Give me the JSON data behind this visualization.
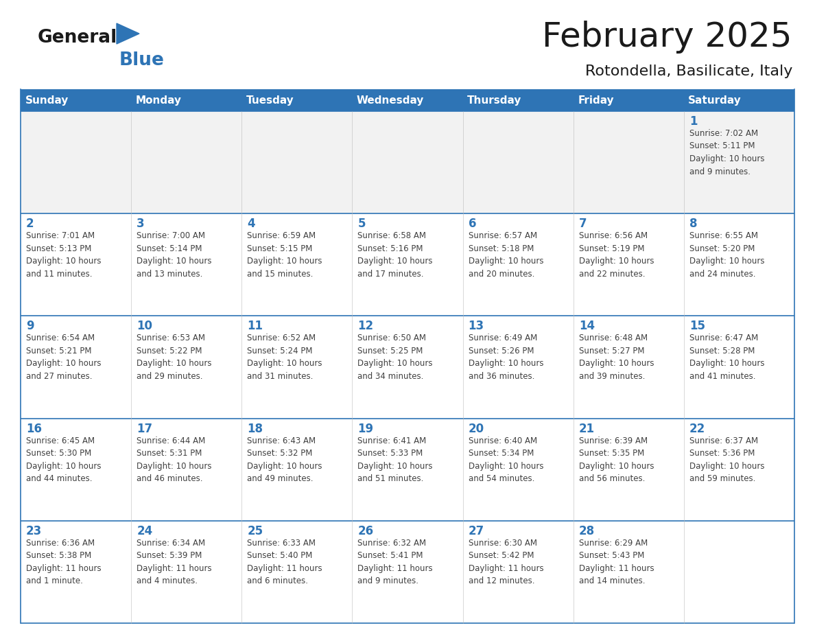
{
  "title": "February 2025",
  "subtitle": "Rotondella, Basilicate, Italy",
  "header_bg": "#2E74B5",
  "header_text_color": "#FFFFFF",
  "day_headers": [
    "Sunday",
    "Monday",
    "Tuesday",
    "Wednesday",
    "Thursday",
    "Friday",
    "Saturday"
  ],
  "cell_bg_white": "#FFFFFF",
  "cell_bg_gray": "#F2F2F2",
  "cell_border_color": "#2E74B5",
  "title_color": "#1a1a1a",
  "subtitle_color": "#1a1a1a",
  "day_number_color": "#2E74B5",
  "info_color": "#404040",
  "logo_general_color": "#1a1a1a",
  "logo_blue_color": "#2E74B5",
  "logo_triangle_color": "#2E74B5",
  "calendar": [
    [
      {
        "day": 0,
        "info": ""
      },
      {
        "day": 0,
        "info": ""
      },
      {
        "day": 0,
        "info": ""
      },
      {
        "day": 0,
        "info": ""
      },
      {
        "day": 0,
        "info": ""
      },
      {
        "day": 0,
        "info": ""
      },
      {
        "day": 1,
        "info": "Sunrise: 7:02 AM\nSunset: 5:11 PM\nDaylight: 10 hours\nand 9 minutes."
      }
    ],
    [
      {
        "day": 2,
        "info": "Sunrise: 7:01 AM\nSunset: 5:13 PM\nDaylight: 10 hours\nand 11 minutes."
      },
      {
        "day": 3,
        "info": "Sunrise: 7:00 AM\nSunset: 5:14 PM\nDaylight: 10 hours\nand 13 minutes."
      },
      {
        "day": 4,
        "info": "Sunrise: 6:59 AM\nSunset: 5:15 PM\nDaylight: 10 hours\nand 15 minutes."
      },
      {
        "day": 5,
        "info": "Sunrise: 6:58 AM\nSunset: 5:16 PM\nDaylight: 10 hours\nand 17 minutes."
      },
      {
        "day": 6,
        "info": "Sunrise: 6:57 AM\nSunset: 5:18 PM\nDaylight: 10 hours\nand 20 minutes."
      },
      {
        "day": 7,
        "info": "Sunrise: 6:56 AM\nSunset: 5:19 PM\nDaylight: 10 hours\nand 22 minutes."
      },
      {
        "day": 8,
        "info": "Sunrise: 6:55 AM\nSunset: 5:20 PM\nDaylight: 10 hours\nand 24 minutes."
      }
    ],
    [
      {
        "day": 9,
        "info": "Sunrise: 6:54 AM\nSunset: 5:21 PM\nDaylight: 10 hours\nand 27 minutes."
      },
      {
        "day": 10,
        "info": "Sunrise: 6:53 AM\nSunset: 5:22 PM\nDaylight: 10 hours\nand 29 minutes."
      },
      {
        "day": 11,
        "info": "Sunrise: 6:52 AM\nSunset: 5:24 PM\nDaylight: 10 hours\nand 31 minutes."
      },
      {
        "day": 12,
        "info": "Sunrise: 6:50 AM\nSunset: 5:25 PM\nDaylight: 10 hours\nand 34 minutes."
      },
      {
        "day": 13,
        "info": "Sunrise: 6:49 AM\nSunset: 5:26 PM\nDaylight: 10 hours\nand 36 minutes."
      },
      {
        "day": 14,
        "info": "Sunrise: 6:48 AM\nSunset: 5:27 PM\nDaylight: 10 hours\nand 39 minutes."
      },
      {
        "day": 15,
        "info": "Sunrise: 6:47 AM\nSunset: 5:28 PM\nDaylight: 10 hours\nand 41 minutes."
      }
    ],
    [
      {
        "day": 16,
        "info": "Sunrise: 6:45 AM\nSunset: 5:30 PM\nDaylight: 10 hours\nand 44 minutes."
      },
      {
        "day": 17,
        "info": "Sunrise: 6:44 AM\nSunset: 5:31 PM\nDaylight: 10 hours\nand 46 minutes."
      },
      {
        "day": 18,
        "info": "Sunrise: 6:43 AM\nSunset: 5:32 PM\nDaylight: 10 hours\nand 49 minutes."
      },
      {
        "day": 19,
        "info": "Sunrise: 6:41 AM\nSunset: 5:33 PM\nDaylight: 10 hours\nand 51 minutes."
      },
      {
        "day": 20,
        "info": "Sunrise: 6:40 AM\nSunset: 5:34 PM\nDaylight: 10 hours\nand 54 minutes."
      },
      {
        "day": 21,
        "info": "Sunrise: 6:39 AM\nSunset: 5:35 PM\nDaylight: 10 hours\nand 56 minutes."
      },
      {
        "day": 22,
        "info": "Sunrise: 6:37 AM\nSunset: 5:36 PM\nDaylight: 10 hours\nand 59 minutes."
      }
    ],
    [
      {
        "day": 23,
        "info": "Sunrise: 6:36 AM\nSunset: 5:38 PM\nDaylight: 11 hours\nand 1 minute."
      },
      {
        "day": 24,
        "info": "Sunrise: 6:34 AM\nSunset: 5:39 PM\nDaylight: 11 hours\nand 4 minutes."
      },
      {
        "day": 25,
        "info": "Sunrise: 6:33 AM\nSunset: 5:40 PM\nDaylight: 11 hours\nand 6 minutes."
      },
      {
        "day": 26,
        "info": "Sunrise: 6:32 AM\nSunset: 5:41 PM\nDaylight: 11 hours\nand 9 minutes."
      },
      {
        "day": 27,
        "info": "Sunrise: 6:30 AM\nSunset: 5:42 PM\nDaylight: 11 hours\nand 12 minutes."
      },
      {
        "day": 28,
        "info": "Sunrise: 6:29 AM\nSunset: 5:43 PM\nDaylight: 11 hours\nand 14 minutes."
      },
      {
        "day": 0,
        "info": ""
      }
    ]
  ]
}
